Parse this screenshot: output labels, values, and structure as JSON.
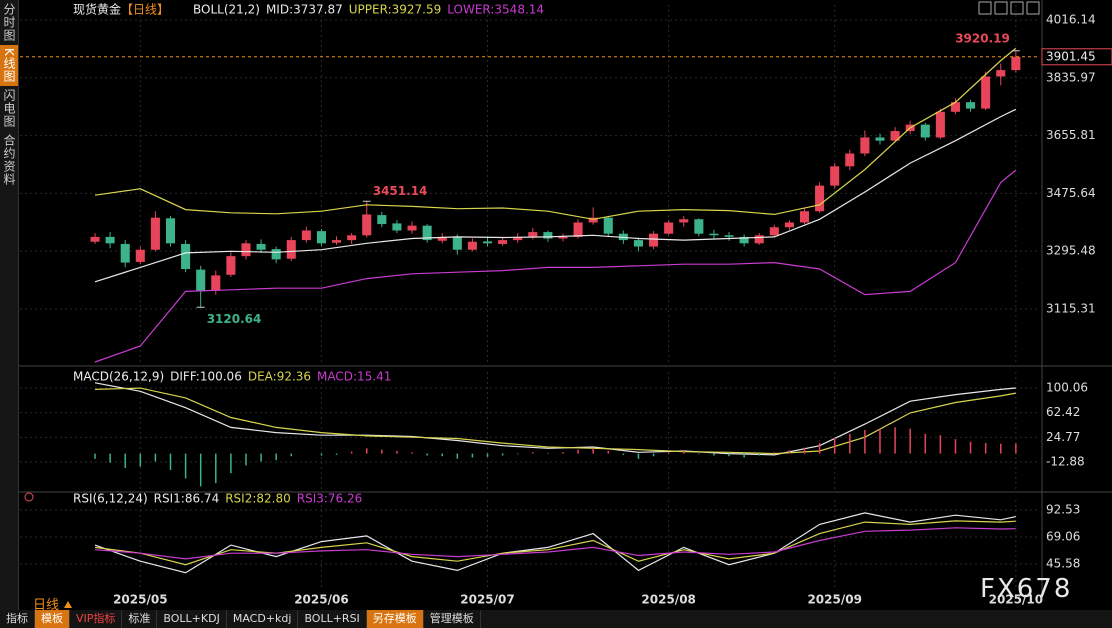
{
  "ui": {
    "side_tabs": [
      "分时图",
      "K线图",
      "闪电图",
      "合约资料"
    ],
    "period": "日线",
    "toolbar": [
      "指标",
      "模板",
      "VIP指标",
      "标准",
      "BOLL+KDJ",
      "MACD+kdj",
      "BOLL+RSI",
      "另存模板",
      "管理模板"
    ],
    "watermark": "FX678"
  },
  "chart_data": [
    {
      "type": "candlestick",
      "title": "现货黄金",
      "period": "【日线】",
      "indicator": "BOLL(21,2)",
      "up_color": "#e8455a",
      "down_color": "#3cb38c",
      "xlim": [
        -4.97,
        62.6
      ],
      "ylim": [
        2940.7,
        4062.9
      ],
      "yticks": [
        4016.14,
        3835.97,
        3655.81,
        3475.64,
        3295.48,
        3115.31
      ],
      "grid": true,
      "candles": [
        [
          3325,
          3352,
          3318,
          3340
        ],
        [
          3340,
          3355,
          3305,
          3320
        ],
        [
          3318,
          3330,
          3245,
          3260
        ],
        [
          3262,
          3310,
          3255,
          3300
        ],
        [
          3300,
          3420,
          3295,
          3400
        ],
        [
          3398,
          3405,
          3310,
          3320
        ],
        [
          3318,
          3330,
          3230,
          3240
        ],
        [
          3238,
          3250,
          3120.64,
          3170
        ],
        [
          3172,
          3235,
          3160,
          3220
        ],
        [
          3222,
          3292,
          3215,
          3280
        ],
        [
          3280,
          3330,
          3270,
          3320
        ],
        [
          3318,
          3332,
          3290,
          3300
        ],
        [
          3302,
          3310,
          3258,
          3270
        ],
        [
          3272,
          3340,
          3265,
          3330
        ],
        [
          3330,
          3372,
          3322,
          3360
        ],
        [
          3358,
          3365,
          3312,
          3320
        ],
        [
          3322,
          3342,
          3315,
          3330
        ],
        [
          3330,
          3352,
          3318,
          3345
        ],
        [
          3345,
          3451.14,
          3338,
          3410
        ],
        [
          3408,
          3418,
          3370,
          3380
        ],
        [
          3382,
          3392,
          3352,
          3360
        ],
        [
          3360,
          3388,
          3350,
          3375
        ],
        [
          3375,
          3380,
          3322,
          3330
        ],
        [
          3328,
          3352,
          3320,
          3340
        ],
        [
          3340,
          3348,
          3285,
          3300
        ],
        [
          3300,
          3335,
          3295,
          3325
        ],
        [
          3326,
          3338,
          3310,
          3320
        ],
        [
          3318,
          3340,
          3312,
          3330
        ],
        [
          3330,
          3352,
          3322,
          3340
        ],
        [
          3340,
          3368,
          3332,
          3355
        ],
        [
          3355,
          3360,
          3325,
          3335
        ],
        [
          3335,
          3350,
          3326,
          3340
        ],
        [
          3340,
          3395,
          3335,
          3385
        ],
        [
          3385,
          3432,
          3378,
          3400
        ],
        [
          3400,
          3405,
          3340,
          3350
        ],
        [
          3350,
          3360,
          3318,
          3330
        ],
        [
          3330,
          3338,
          3295,
          3310
        ],
        [
          3310,
          3358,
          3302,
          3350
        ],
        [
          3350,
          3392,
          3345,
          3385
        ],
        [
          3385,
          3405,
          3372,
          3395
        ],
        [
          3395,
          3398,
          3342,
          3350
        ],
        [
          3350,
          3362,
          3335,
          3345
        ],
        [
          3345,
          3355,
          3328,
          3340
        ],
        [
          3340,
          3348,
          3310,
          3320
        ],
        [
          3320,
          3352,
          3315,
          3345
        ],
        [
          3345,
          3378,
          3340,
          3370
        ],
        [
          3370,
          3392,
          3362,
          3385
        ],
        [
          3385,
          3428,
          3380,
          3420
        ],
        [
          3420,
          3510,
          3415,
          3500
        ],
        [
          3500,
          3570,
          3490,
          3560
        ],
        [
          3560,
          3612,
          3548,
          3600
        ],
        [
          3600,
          3672,
          3592,
          3650
        ],
        [
          3650,
          3662,
          3628,
          3640
        ],
        [
          3640,
          3682,
          3635,
          3670
        ],
        [
          3670,
          3702,
          3660,
          3690
        ],
        [
          3690,
          3695,
          3640,
          3650
        ],
        [
          3650,
          3740,
          3645,
          3730
        ],
        [
          3730,
          3772,
          3722,
          3760
        ],
        [
          3760,
          3768,
          3730,
          3740
        ],
        [
          3740,
          3855,
          3735,
          3840
        ],
        [
          3840,
          3880,
          3812,
          3860
        ],
        [
          3860,
          3920.19,
          3852,
          3901.45
        ]
      ],
      "series": [
        {
          "name": "MID:3737.87",
          "color": "#e8e8e8",
          "x": [
            0,
            3,
            6,
            9,
            12,
            15,
            18,
            21,
            24,
            27,
            30,
            33,
            36,
            39,
            42,
            45,
            48,
            51,
            54,
            57,
            60,
            61
          ],
          "values": [
            3200,
            3245,
            3290,
            3295,
            3292,
            3300,
            3320,
            3335,
            3340,
            3338,
            3340,
            3345,
            3335,
            3330,
            3335,
            3340,
            3395,
            3480,
            3570,
            3640,
            3715,
            3737.87
          ]
        },
        {
          "name": "UPPER:3927.59",
          "color": "#d8d44c",
          "x": [
            0,
            3,
            6,
            9,
            12,
            15,
            18,
            21,
            24,
            27,
            30,
            33,
            36,
            39,
            42,
            45,
            48,
            51,
            54,
            57,
            60,
            61
          ],
          "values": [
            3470,
            3490,
            3425,
            3415,
            3412,
            3420,
            3440,
            3435,
            3428,
            3430,
            3420,
            3395,
            3420,
            3425,
            3422,
            3410,
            3440,
            3550,
            3680,
            3760,
            3890,
            3927.59
          ]
        },
        {
          "name": "LOWER:3548.14",
          "color": "#c83cd0",
          "x": [
            0,
            3,
            6,
            9,
            12,
            15,
            18,
            21,
            24,
            27,
            30,
            33,
            36,
            39,
            42,
            45,
            48,
            51,
            54,
            57,
            60,
            61
          ],
          "values": [
            2950,
            3000,
            3170,
            3175,
            3180,
            3180,
            3210,
            3225,
            3230,
            3235,
            3245,
            3245,
            3250,
            3255,
            3255,
            3260,
            3240,
            3160,
            3170,
            3260,
            3510,
            3548.14
          ]
        }
      ]
    },
    {
      "type": "combo",
      "indicator": "MACD(26,12,9)",
      "xlim": [
        -4.97,
        62.6
      ],
      "ylim": [
        -55.6,
        124.5
      ],
      "yticks": [
        100.06,
        62.42,
        24.77,
        -12.88
      ],
      "grid": true,
      "series": [
        {
          "name": "DIFF:100.06",
          "color": "#e8e8e8",
          "x": [
            0,
            3,
            6,
            9,
            12,
            15,
            18,
            21,
            24,
            27,
            30,
            33,
            36,
            39,
            42,
            45,
            48,
            51,
            54,
            57,
            60,
            61
          ],
          "values": [
            108,
            95,
            70,
            40,
            32,
            28,
            28,
            26,
            20,
            12,
            8,
            10,
            2,
            4,
            0,
            -2,
            12,
            45,
            80,
            90,
            98,
            100.06
          ]
        },
        {
          "name": "DEA:92.36",
          "color": "#d8d44c",
          "x": [
            0,
            3,
            6,
            9,
            12,
            15,
            18,
            21,
            24,
            27,
            30,
            33,
            36,
            39,
            42,
            45,
            48,
            51,
            54,
            57,
            60,
            61
          ],
          "values": [
            98,
            100,
            85,
            55,
            40,
            32,
            27,
            25,
            23,
            16,
            10,
            8,
            6,
            3,
            2,
            0,
            4,
            25,
            62,
            78,
            88,
            92.36
          ]
        },
        {
          "name": "MACD:15.41",
          "color": "#c83cd0",
          "style": "bar",
          "up_color": "#e8455a",
          "down_color": "#3cb38c",
          "values": [
            -8,
            -14,
            -22,
            -20,
            -12,
            -25,
            -38,
            -50,
            -45,
            -30,
            -18,
            -12,
            -10,
            -4,
            0,
            -3,
            -2,
            3,
            8,
            6,
            4,
            2,
            -3,
            -4,
            -8,
            -6,
            -5,
            -3,
            -1,
            2,
            1,
            2,
            6,
            8,
            4,
            -2,
            -8,
            -4,
            2,
            4,
            -1,
            -3,
            -4,
            -6,
            -3,
            2,
            5,
            9,
            16,
            24,
            30,
            36,
            38,
            40,
            38,
            30,
            28,
            22,
            18,
            16,
            15,
            15.41
          ]
        }
      ]
    },
    {
      "type": "line",
      "indicator": "RSI(6,12,24)",
      "xlim": [
        -4.97,
        62.6
      ],
      "ylim": [
        22.97,
        101.2
      ],
      "yticks": [
        92.53,
        69.06,
        45.58
      ],
      "grid": true,
      "xticks": [
        {
          "value": 3,
          "label": "2025/05"
        },
        {
          "value": 15,
          "label": "2025/06"
        },
        {
          "value": 26,
          "label": "2025/07"
        },
        {
          "value": 38,
          "label": "2025/08"
        },
        {
          "value": 49,
          "label": "2025/09"
        },
        {
          "value": 61,
          "label": "2025/10"
        }
      ],
      "series": [
        {
          "name": "RSI1:86.74",
          "color": "#e8e8e8",
          "x": [
            0,
            3,
            6,
            9,
            12,
            15,
            18,
            21,
            24,
            27,
            30,
            33,
            36,
            39,
            42,
            45,
            48,
            51,
            54,
            57,
            60,
            61
          ],
          "values": [
            62,
            48,
            38,
            62,
            52,
            65,
            70,
            48,
            40,
            55,
            60,
            72,
            40,
            60,
            45,
            55,
            80,
            90,
            82,
            88,
            84,
            86.74
          ]
        },
        {
          "name": "RSI2:82.80",
          "color": "#d8d44c",
          "x": [
            0,
            3,
            6,
            9,
            12,
            15,
            18,
            21,
            24,
            27,
            30,
            33,
            36,
            39,
            42,
            45,
            48,
            51,
            54,
            57,
            60,
            61
          ],
          "values": [
            60,
            55,
            45,
            58,
            55,
            60,
            64,
            52,
            48,
            55,
            58,
            66,
            48,
            58,
            50,
            55,
            72,
            82,
            80,
            83,
            82,
            82.8
          ]
        },
        {
          "name": "RSI3:76.26",
          "color": "#c83cd0",
          "x": [
            0,
            3,
            6,
            9,
            12,
            15,
            18,
            21,
            24,
            27,
            30,
            33,
            36,
            39,
            42,
            45,
            48,
            51,
            54,
            57,
            60,
            61
          ],
          "values": [
            58,
            55,
            50,
            55,
            55,
            57,
            58,
            54,
            52,
            54,
            56,
            60,
            53,
            56,
            54,
            56,
            66,
            74,
            75,
            77,
            76,
            76.26
          ]
        }
      ]
    }
  ]
}
